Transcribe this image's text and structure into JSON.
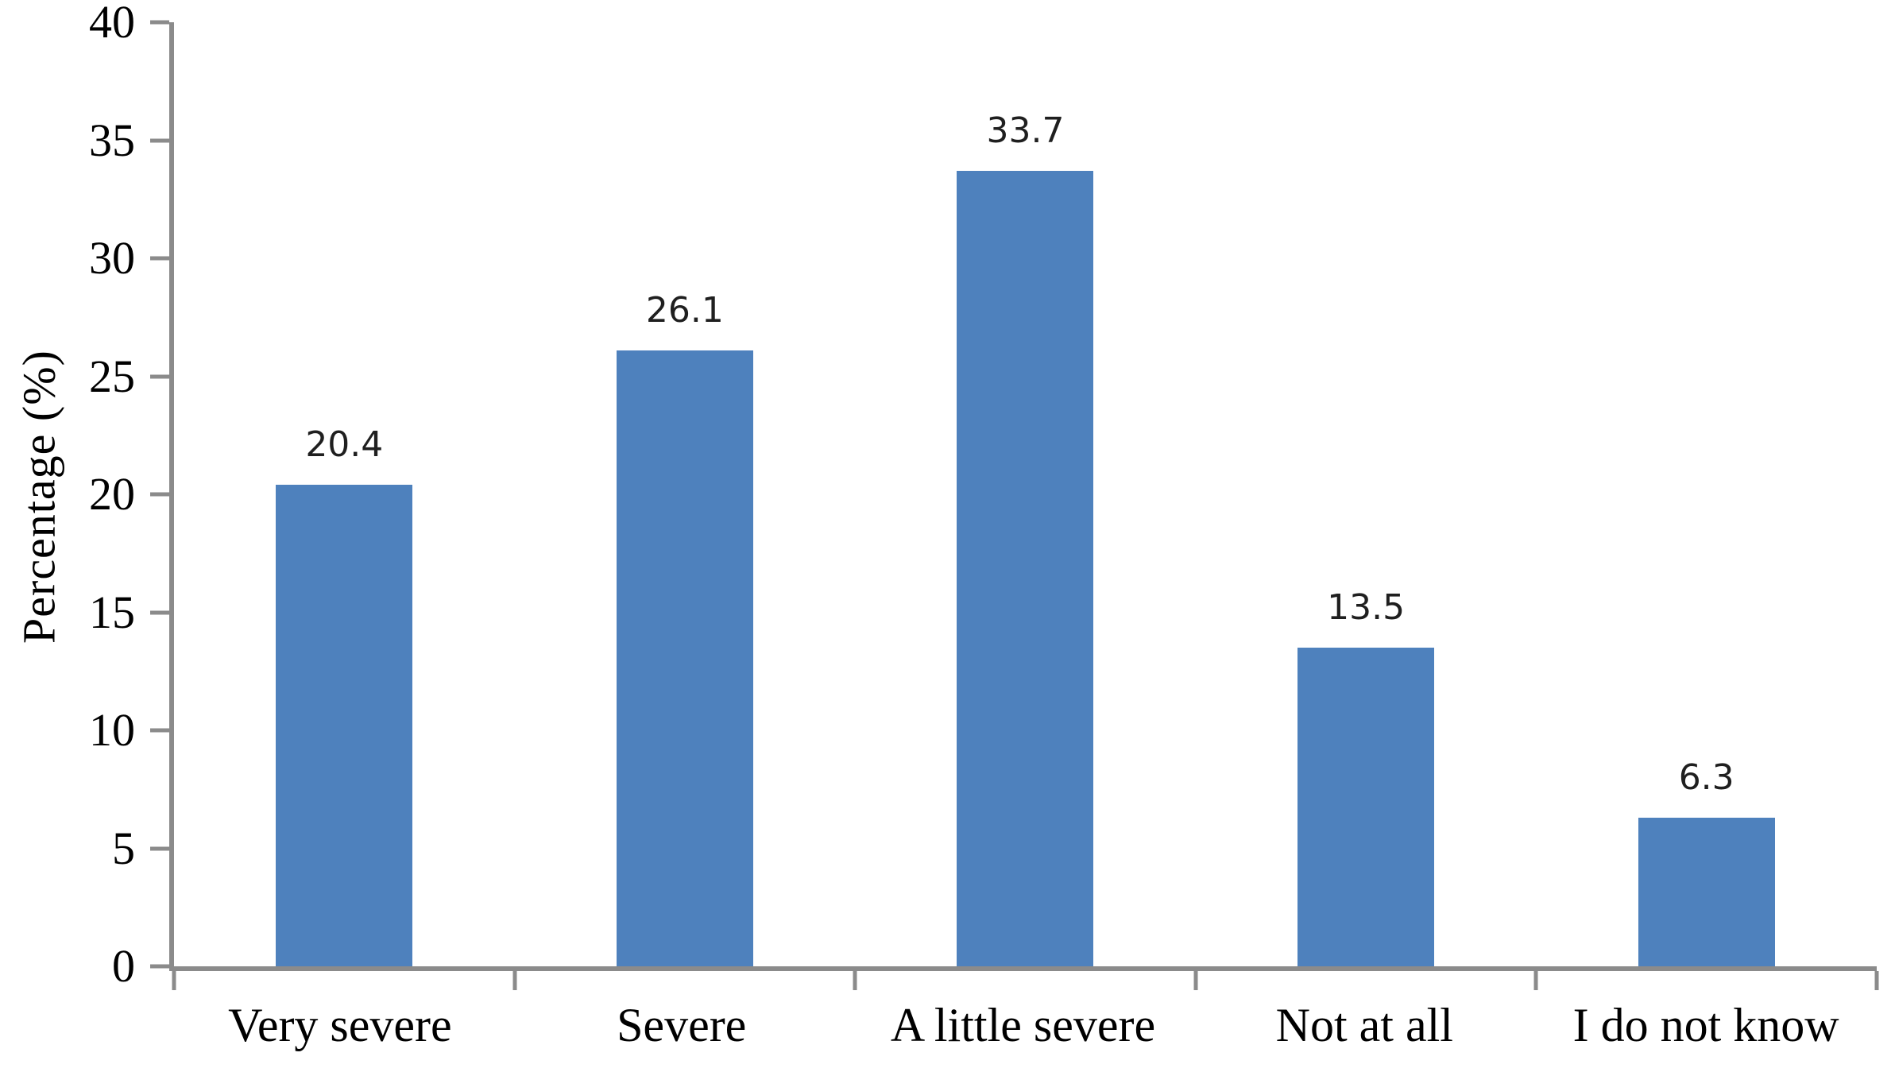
{
  "chart_data": {
    "type": "bar",
    "title": "",
    "categories": [
      "Very severe",
      "Severe",
      "A little severe",
      "Not at all",
      "I do not know"
    ],
    "values": [
      20.4,
      26.1,
      33.7,
      13.5,
      6.3
    ],
    "value_labels": [
      "20.4",
      "26.1",
      "33.7",
      "13.5",
      "6.3"
    ],
    "xlabel": "",
    "ylabel": "Percentage (%)",
    "ylim": [
      0,
      40
    ],
    "yticks": [
      0,
      5,
      10,
      15,
      20,
      25,
      30,
      35,
      40
    ],
    "grid": false,
    "legend_position": "none",
    "bar_color": "#4E81BD",
    "axis_color": "#8B8B8B",
    "label_color": "#1F1F1F",
    "background_color": "#FFFFFF"
  }
}
